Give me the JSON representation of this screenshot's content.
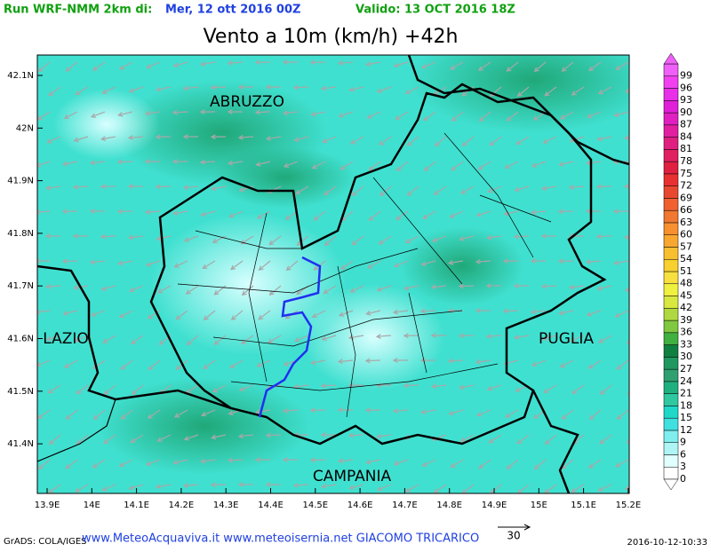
{
  "header": {
    "run": "Run WRF-NMM 2km di:",
    "run_date": "Mer, 12 ott 2016 00Z",
    "valid": "Valido: 13 OCT 2016 18Z"
  },
  "title": "Vento a 10m (km/h) +42h",
  "map": {
    "lat_labels": [
      "42.1N",
      "42N",
      "41.9N",
      "41.8N",
      "41.7N",
      "41.6N",
      "41.5N",
      "41.4N"
    ],
    "lon_labels": [
      "13.9E",
      "14E",
      "14.1E",
      "14.2E",
      "14.3E",
      "14.4E",
      "14.5E",
      "14.6E",
      "14.7E",
      "14.8E",
      "14.9E",
      "15E",
      "15.1E",
      "15.2E"
    ],
    "regions": [
      "ABRUZZO",
      "LAZIO",
      "PUGLIA",
      "CAMPANIA"
    ]
  },
  "colorbar": {
    "labels": [
      "0",
      "3",
      "6",
      "9",
      "12",
      "15",
      "18",
      "21",
      "24",
      "27",
      "30",
      "33",
      "36",
      "39",
      "42",
      "45",
      "48",
      "51",
      "54",
      "57",
      "60",
      "63",
      "66",
      "69",
      "72",
      "75",
      "78",
      "81",
      "84",
      "87",
      "90",
      "93",
      "96",
      "99"
    ],
    "colors": [
      "#ffffff",
      "#e0ffff",
      "#b0f5f5",
      "#80eeee",
      "#40e0e0",
      "#20d8c8",
      "#30c8a0",
      "#20b080",
      "#30a070",
      "#209860",
      "#108040",
      "#40b040",
      "#80c840",
      "#b0d840",
      "#d8e840",
      "#f0f040",
      "#f8e040",
      "#f8d030",
      "#f8c030",
      "#f8a830",
      "#f89030",
      "#f07830",
      "#f06030",
      "#e84830",
      "#e83030",
      "#e02040",
      "#e02060",
      "#e02080",
      "#e020a0",
      "#e020c0",
      "#e020d8",
      "#e830e8",
      "#f040f0",
      "#f060f8"
    ]
  },
  "footer": {
    "grads": "GrADS: COLA/IGES",
    "sites": "www.MeteoAcquaviva.it www.meteoisernia.net GIACOMO TRICARICO",
    "ref_vector": "30",
    "timestamp": "2016-10-12-10:33"
  }
}
